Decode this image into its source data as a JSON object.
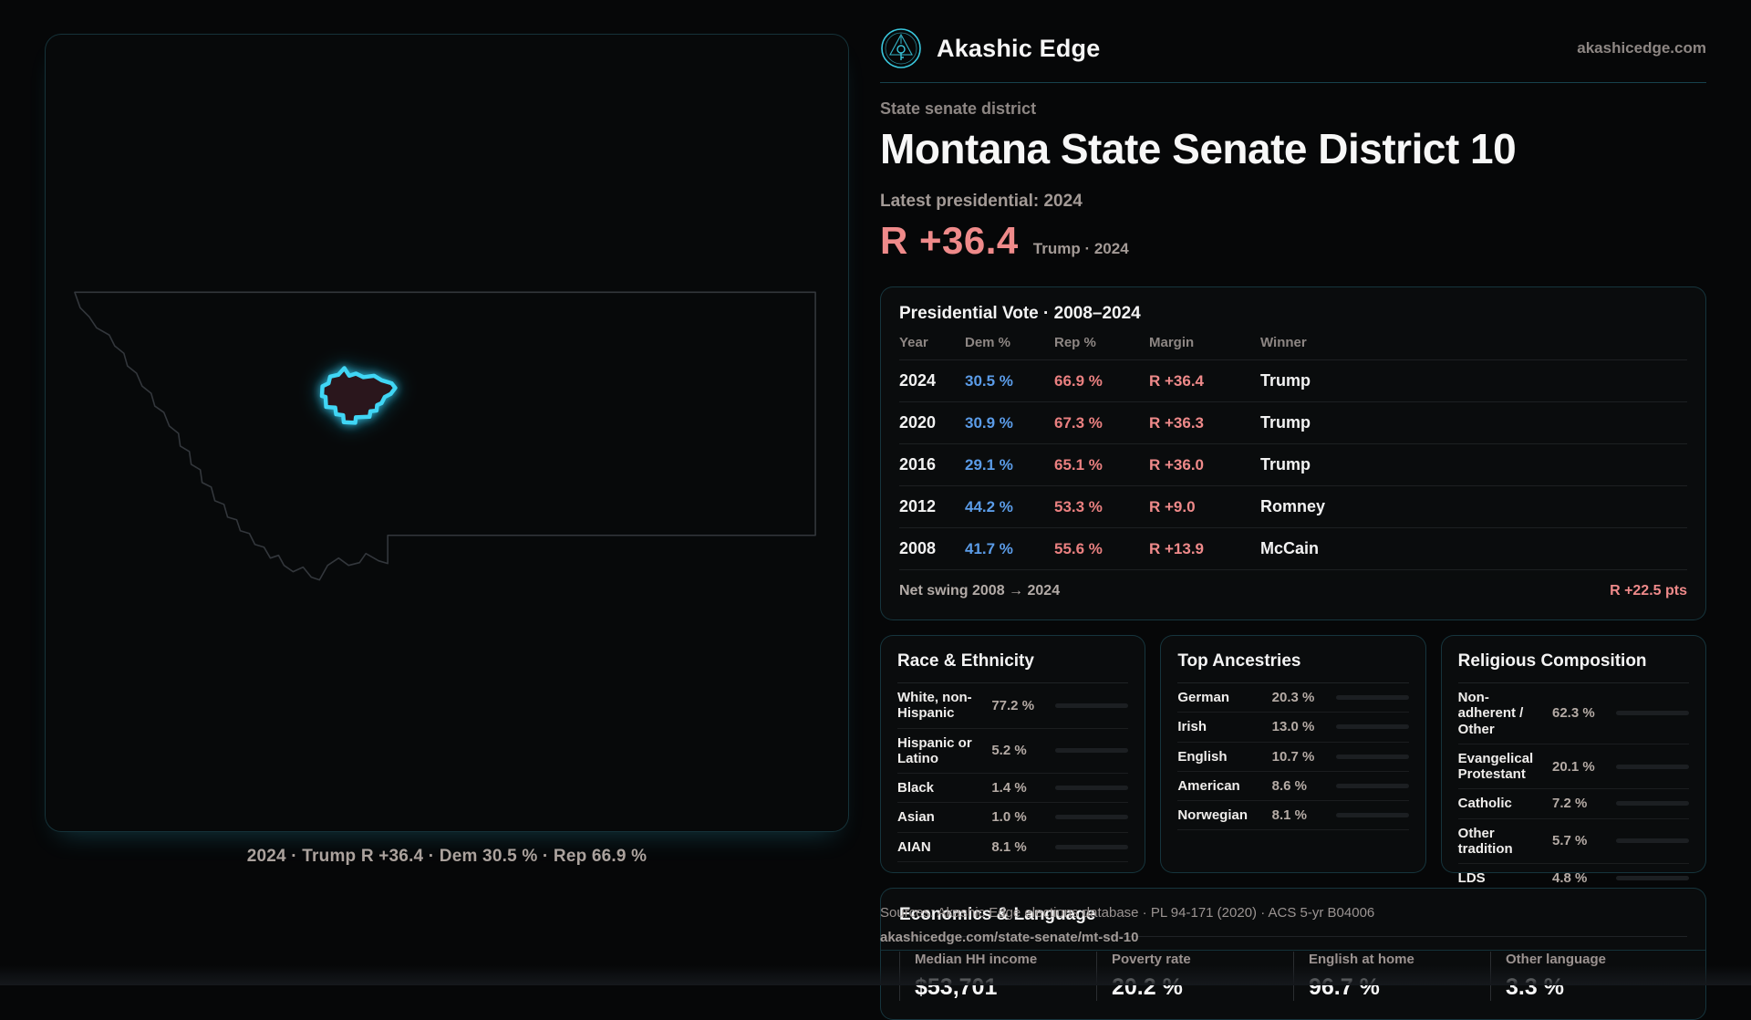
{
  "brand": {
    "name": "Akashic Edge",
    "domain": "akashicedge.com"
  },
  "page": {
    "kicker": "State senate district",
    "title": "Montana State Senate District 10",
    "latest_label": "Latest presidential: 2024",
    "margin_big": "R +36.4",
    "margin_context": "Trump · 2024"
  },
  "map": {
    "caption": "2024 · Trump R +36.4 · Dem 30.5 % · Rep 66.9 %"
  },
  "pres_table": {
    "title": "Presidential Vote · 2008–2024",
    "headers": {
      "year": "Year",
      "dem": "Dem %",
      "rep": "Rep %",
      "margin": "Margin",
      "winner": "Winner"
    },
    "rows": [
      {
        "year": "2024",
        "dem": "30.5 %",
        "rep": "66.9 %",
        "margin": "R +36.4",
        "winner": "Trump"
      },
      {
        "year": "2020",
        "dem": "30.9 %",
        "rep": "67.3 %",
        "margin": "R +36.3",
        "winner": "Trump"
      },
      {
        "year": "2016",
        "dem": "29.1 %",
        "rep": "65.1 %",
        "margin": "R +36.0",
        "winner": "Trump"
      },
      {
        "year": "2012",
        "dem": "44.2 %",
        "rep": "53.3 %",
        "margin": "R +9.0",
        "winner": "Romney"
      },
      {
        "year": "2008",
        "dem": "41.7 %",
        "rep": "55.6 %",
        "margin": "R +13.9",
        "winner": "McCain"
      }
    ],
    "net_swing_label": "Net swing 2008 → 2024",
    "net_swing_value": "R +22.5 pts"
  },
  "race_card": {
    "title": "Race & Ethnicity",
    "rows": [
      {
        "label": "White, non-Hispanic",
        "value": "77.2 %",
        "pct": 77.2,
        "color": "#97a9c9"
      },
      {
        "label": "Hispanic or Latino",
        "value": "5.2 %",
        "pct": 5.2,
        "color": "#dd9a33"
      },
      {
        "label": "Black",
        "value": "1.4 %",
        "pct": 1.4,
        "color": "#8f82e8"
      },
      {
        "label": "Asian",
        "value": "1.0 %",
        "pct": 1.0,
        "color": "#34cfa4"
      },
      {
        "label": "AIAN",
        "value": "8.1 %",
        "pct": 8.1,
        "color": "#dd9a33"
      }
    ]
  },
  "ancestry_card": {
    "title": "Top Ancestries",
    "rows": [
      {
        "label": "German",
        "value": "20.3 %",
        "pct": 20.3,
        "color": "#93a6c6"
      },
      {
        "label": "Irish",
        "value": "13.0 %",
        "pct": 13.0,
        "color": "#93a6c6"
      },
      {
        "label": "English",
        "value": "10.7 %",
        "pct": 10.7,
        "color": "#93a6c6"
      },
      {
        "label": "American",
        "value": "8.6 %",
        "pct": 8.6,
        "color": "#93a6c6"
      },
      {
        "label": "Norwegian",
        "value": "8.1 %",
        "pct": 8.1,
        "color": "#93a6c6"
      }
    ]
  },
  "religion_card": {
    "title": "Religious Composition",
    "rows": [
      {
        "label": "Non-adherent / Other",
        "value": "62.3 %",
        "pct": 62.3,
        "color": "#7e8a99"
      },
      {
        "label": "Evangelical Protestant",
        "value": "20.1 %",
        "pct": 20.1,
        "color": "#e08282"
      },
      {
        "label": "Catholic",
        "value": "7.2 %",
        "pct": 7.2,
        "color": "#dfb13a"
      },
      {
        "label": "Other tradition",
        "value": "5.7 %",
        "pct": 5.7,
        "color": "#858c96"
      },
      {
        "label": "LDS",
        "value": "4.8 %",
        "pct": 4.8,
        "color": "#2fd0a8"
      }
    ]
  },
  "econ_card": {
    "title": "Economics & Language",
    "stats": [
      {
        "label": "Median HH income",
        "value": "$53,701"
      },
      {
        "label": "Poverty rate",
        "value": "20.2 %"
      },
      {
        "label": "English at home",
        "value": "96.7 %"
      },
      {
        "label": "Other language",
        "value": "3.3 %"
      }
    ]
  },
  "footer": {
    "line1": "Sources: Akashic Edge elections database · PL 94-171 (2020) · ACS 5-yr B04006",
    "line2": "akashicedge.com/state-senate/mt-sd-10"
  },
  "colors": {
    "accent_teal": "#3fd6f5",
    "margin_red": "#ef8a8a",
    "dem_blue": "#5b9ce8",
    "rep_red": "#ea8080",
    "district_fill": "#2b161a",
    "state_outline": "#33373c"
  }
}
